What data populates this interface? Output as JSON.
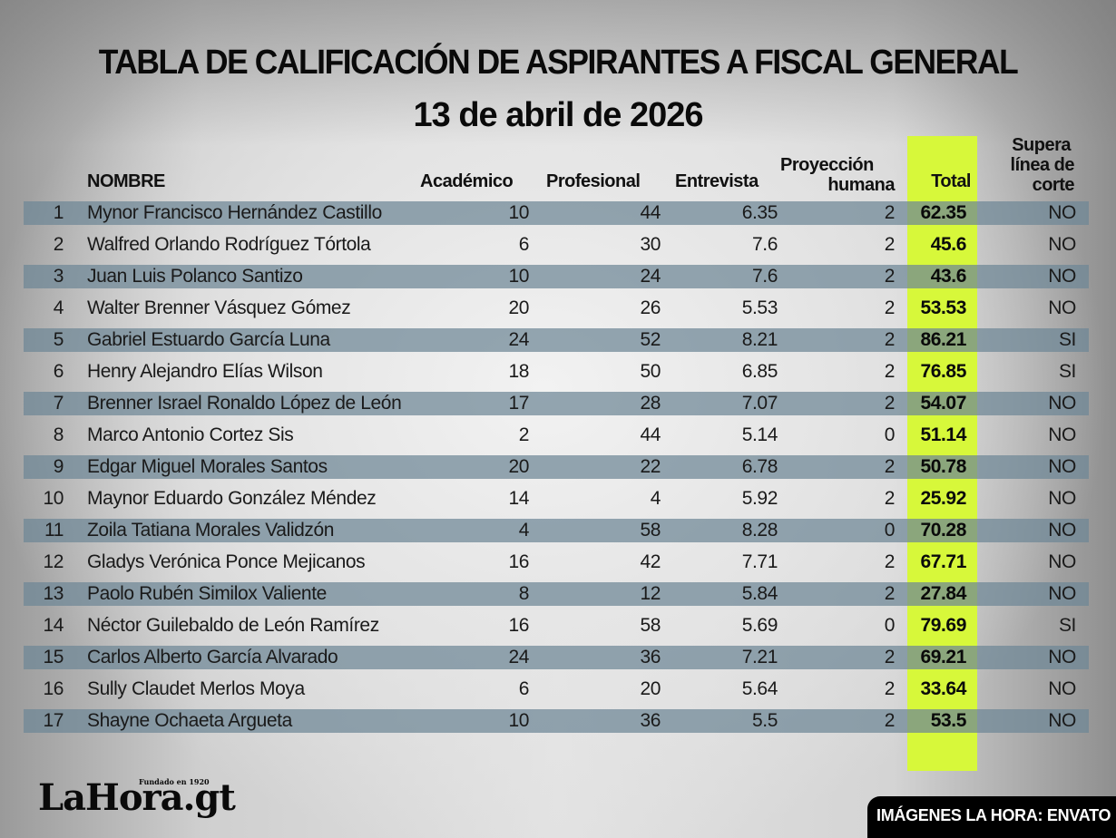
{
  "title": "TABLA DE CALIFICACIÓN DE ASPIRANTES A FISCAL GENERAL",
  "subtitle": "13 de abril de 2026",
  "colors": {
    "total_highlight": "#d7f83a",
    "row_band": "#8a9ba6",
    "credit_bg": "#000000"
  },
  "headers": {
    "nombre": "NOMBRE",
    "academico": "Académico",
    "profesional": "Profesional",
    "entrevista": "Entrevista",
    "proyeccion_1": "Proyección",
    "proyeccion_2": "humana",
    "total": "Total",
    "supera_1": "Supera",
    "supera_2": "línea de",
    "supera_3": "corte"
  },
  "rows": [
    {
      "n": "1",
      "name": "Mynor Francisco Hernández Castillo",
      "acad": "10",
      "prof": "44",
      "entr": "6.35",
      "proy": "2",
      "total": "62.35",
      "supera": "NO"
    },
    {
      "n": "2",
      "name": "Walfred Orlando Rodríguez Tórtola",
      "acad": "6",
      "prof": "30",
      "entr": "7.6",
      "proy": "2",
      "total": "45.6",
      "supera": "NO"
    },
    {
      "n": "3",
      "name": "Juan Luis Polanco Santizo",
      "acad": "10",
      "prof": "24",
      "entr": "7.6",
      "proy": "2",
      "total": "43.6",
      "supera": "NO"
    },
    {
      "n": "4",
      "name": "Walter Brenner Vásquez Gómez",
      "acad": "20",
      "prof": "26",
      "entr": "5.53",
      "proy": "2",
      "total": "53.53",
      "supera": "NO"
    },
    {
      "n": "5",
      "name": "Gabriel Estuardo García Luna",
      "acad": "24",
      "prof": "52",
      "entr": "8.21",
      "proy": "2",
      "total": "86.21",
      "supera": "SI"
    },
    {
      "n": "6",
      "name": "Henry Alejandro Elías Wilson",
      "acad": "18",
      "prof": "50",
      "entr": "6.85",
      "proy": "2",
      "total": "76.85",
      "supera": "SI"
    },
    {
      "n": "7",
      "name": "Brenner Israel Ronaldo López de León",
      "acad": "17",
      "prof": "28",
      "entr": "7.07",
      "proy": "2",
      "total": "54.07",
      "supera": "NO"
    },
    {
      "n": "8",
      "name": "Marco Antonio Cortez Sis",
      "acad": "2",
      "prof": "44",
      "entr": "5.14",
      "proy": "0",
      "total": "51.14",
      "supera": "NO"
    },
    {
      "n": "9",
      "name": "Edgar Miguel Morales Santos",
      "acad": "20",
      "prof": "22",
      "entr": "6.78",
      "proy": "2",
      "total": "50.78",
      "supera": "NO"
    },
    {
      "n": "10",
      "name": "Maynor Eduardo González Méndez",
      "acad": "14",
      "prof": "4",
      "entr": "5.92",
      "proy": "2",
      "total": "25.92",
      "supera": "NO"
    },
    {
      "n": "11",
      "name": "Zoila Tatiana Morales Validzón",
      "acad": "4",
      "prof": "58",
      "entr": "8.28",
      "proy": "0",
      "total": "70.28",
      "supera": "NO"
    },
    {
      "n": "12",
      "name": "Gladys Verónica Ponce Mejicanos",
      "acad": "16",
      "prof": "42",
      "entr": "7.71",
      "proy": "2",
      "total": "67.71",
      "supera": "NO"
    },
    {
      "n": "13",
      "name": "Paolo Rubén Similox Valiente",
      "acad": "8",
      "prof": "12",
      "entr": "5.84",
      "proy": "2",
      "total": "27.84",
      "supera": "NO"
    },
    {
      "n": "14",
      "name": "Néctor Guilebaldo de León Ramírez",
      "acad": "16",
      "prof": "58",
      "entr": "5.69",
      "proy": "0",
      "total": "79.69",
      "supera": "SI"
    },
    {
      "n": "15",
      "name": "Carlos Alberto García Alvarado",
      "acad": "24",
      "prof": "36",
      "entr": "7.21",
      "proy": "2",
      "total": "69.21",
      "supera": "NO"
    },
    {
      "n": "16",
      "name": "Sully Claudet Merlos Moya",
      "acad": "6",
      "prof": "20",
      "entr": "5.64",
      "proy": "2",
      "total": "33.64",
      "supera": "NO"
    },
    {
      "n": "17",
      "name": "Shayne Ochaeta Argueta",
      "acad": "10",
      "prof": "36",
      "entr": "5.5",
      "proy": "2",
      "total": "53.5",
      "supera": "NO"
    }
  ],
  "footer": {
    "logo_text": "LaHora.gt",
    "logo_tagline": "Fundado en 1920",
    "credit": "IMÁGENES LA HORA: ENVATO"
  },
  "chart_data": {
    "type": "table",
    "title": "TABLA DE CALIFICACIÓN DE ASPIRANTES A FISCAL GENERAL",
    "subtitle": "13 de abril de 2026",
    "columns": [
      "#",
      "NOMBRE",
      "Académico",
      "Profesional",
      "Entrevista",
      "Proyección humana",
      "Total",
      "Supera línea de corte"
    ],
    "rows": [
      [
        1,
        "Mynor Francisco Hernández Castillo",
        10,
        44,
        6.35,
        2,
        62.35,
        "NO"
      ],
      [
        2,
        "Walfred Orlando Rodríguez Tórtola",
        6,
        30,
        7.6,
        2,
        45.6,
        "NO"
      ],
      [
        3,
        "Juan Luis Polanco Santizo",
        10,
        24,
        7.6,
        2,
        43.6,
        "NO"
      ],
      [
        4,
        "Walter Brenner Vásquez Gómez",
        20,
        26,
        5.53,
        2,
        53.53,
        "NO"
      ],
      [
        5,
        "Gabriel Estuardo García Luna",
        24,
        52,
        8.21,
        2,
        86.21,
        "SI"
      ],
      [
        6,
        "Henry Alejandro Elías Wilson",
        18,
        50,
        6.85,
        2,
        76.85,
        "SI"
      ],
      [
        7,
        "Brenner Israel Ronaldo López de León",
        17,
        28,
        7.07,
        2,
        54.07,
        "NO"
      ],
      [
        8,
        "Marco Antonio Cortez Sis",
        2,
        44,
        5.14,
        0,
        51.14,
        "NO"
      ],
      [
        9,
        "Edgar Miguel Morales Santos",
        20,
        22,
        6.78,
        2,
        50.78,
        "NO"
      ],
      [
        10,
        "Maynor Eduardo González Méndez",
        14,
        4,
        5.92,
        2,
        25.92,
        "NO"
      ],
      [
        11,
        "Zoila Tatiana Morales Validzón",
        4,
        58,
        8.28,
        0,
        70.28,
        "NO"
      ],
      [
        12,
        "Gladys Verónica Ponce Mejicanos",
        16,
        42,
        7.71,
        2,
        67.71,
        "NO"
      ],
      [
        13,
        "Paolo Rubén Similox Valiente",
        8,
        12,
        5.84,
        2,
        27.84,
        "NO"
      ],
      [
        14,
        "Néctor Guilebaldo de León Ramírez",
        16,
        58,
        5.69,
        0,
        79.69,
        "SI"
      ],
      [
        15,
        "Carlos Alberto García Alvarado",
        24,
        36,
        7.21,
        2,
        69.21,
        "NO"
      ],
      [
        16,
        "Sully Claudet Merlos Moya",
        6,
        20,
        5.64,
        2,
        33.64,
        "NO"
      ],
      [
        17,
        "Shayne Ochaeta Argueta",
        10,
        36,
        5.5,
        2,
        53.5,
        "NO"
      ]
    ],
    "highlight_column": "Total"
  }
}
